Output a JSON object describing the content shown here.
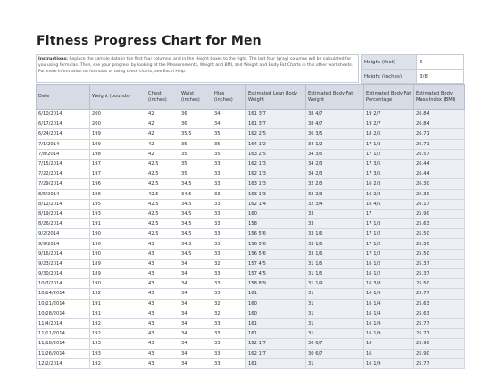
{
  "header": {
    "title": "Fitness Progress Chart for Men"
  },
  "instructions": {
    "label": "Instructions:",
    "text": "Replace the sample data in the first four columns, and in the Height boxes to the right. The last four (gray) columns will be calculated for you using formulas. Then, see your progress by looking at the Measurements, Weight and BMI, and Weight and Body Fat Charts in this other worksheets. For more information on formulas or using these charts, see Excel Help."
  },
  "height": {
    "feet_label": "Height (feet)",
    "feet": "6",
    "inches_label": "Height (inches)",
    "inches": "3/8"
  },
  "table": {
    "columns": [
      "Date",
      "Weight (pounds)",
      "Chest (inches)",
      "Waist (inches)",
      "Hips (inches)",
      "Estimated Lean Body Weight",
      "Estimated Body Fat Weight",
      "Estimated Body Fat Percentage",
      "Estimated Body Mass Index (BMI)"
    ],
    "rows": [
      [
        "6/10/2014",
        "200",
        "42",
        "36",
        "34",
        "161 3/7",
        "38 4/7",
        "19 2/7",
        "26.84"
      ],
      [
        "6/17/2014",
        "200",
        "42",
        "36",
        "34",
        "161 3/7",
        "38 4/7",
        "19 2/7",
        "26.84"
      ],
      [
        "6/24/2014",
        "199",
        "42",
        "35.5",
        "35",
        "162 2/5",
        "36 3/5",
        "18 2/5",
        "26.71"
      ],
      [
        "7/1/2014",
        "199",
        "42",
        "35",
        "35",
        "164 1/2",
        "34 1/2",
        "17 1/3",
        "26.71"
      ],
      [
        "7/8/2014",
        "198",
        "42",
        "35",
        "35",
        "163 2/5",
        "34 3/5",
        "17 1/2",
        "26.57"
      ],
      [
        "7/15/2014",
        "197",
        "42.5",
        "35",
        "33",
        "162 1/3",
        "34 2/3",
        "17 3/5",
        "26.44"
      ],
      [
        "7/22/2014",
        "197",
        "42.5",
        "35",
        "33",
        "162 1/3",
        "34 2/3",
        "17 3/5",
        "26.44"
      ],
      [
        "7/29/2014",
        "196",
        "42.5",
        "34.5",
        "33",
        "163 1/3",
        "32 2/3",
        "16 2/3",
        "26.30"
      ],
      [
        "8/5/2014",
        "196",
        "42.5",
        "34.5",
        "33",
        "163 1/3",
        "32 2/3",
        "16 2/3",
        "26.30"
      ],
      [
        "8/12/2014",
        "195",
        "42.5",
        "34.5",
        "33",
        "162 1/4",
        "32 3/4",
        "16 4/5",
        "26.17"
      ],
      [
        "8/19/2014",
        "193",
        "42.5",
        "34.5",
        "33",
        "160",
        "33",
        "17",
        "25.90"
      ],
      [
        "8/26/2014",
        "191",
        "42.5",
        "34.5",
        "33",
        "158",
        "33",
        "17 1/3",
        "25.63"
      ],
      [
        "9/2/2014",
        "190",
        "42.5",
        "34.5",
        "33",
        "156 5/6",
        "33 1/6",
        "17 1/2",
        "25.50"
      ],
      [
        "9/9/2014",
        "190",
        "43",
        "34.5",
        "33",
        "156 5/6",
        "33 1/6",
        "17 1/2",
        "25.50"
      ],
      [
        "9/16/2014",
        "190",
        "43",
        "34.5",
        "33",
        "156 5/6",
        "33 1/6",
        "17 1/2",
        "25.50"
      ],
      [
        "9/23/2014",
        "189",
        "43",
        "34",
        "32",
        "157 4/5",
        "31 1/5",
        "16 1/2",
        "25.37"
      ],
      [
        "9/30/2014",
        "189",
        "43",
        "34",
        "33",
        "157 4/5",
        "31 1/5",
        "16 1/2",
        "25.37"
      ],
      [
        "10/7/2014",
        "190",
        "43",
        "34",
        "33",
        "158 8/9",
        "31 1/9",
        "16 3/8",
        "25.50"
      ],
      [
        "10/14/2014",
        "192",
        "43",
        "34",
        "33",
        "161",
        "31",
        "16 1/9",
        "25.77"
      ],
      [
        "10/21/2014",
        "191",
        "43",
        "34",
        "32",
        "160",
        "31",
        "16 1/4",
        "25.63"
      ],
      [
        "10/28/2014",
        "191",
        "43",
        "34",
        "32",
        "160",
        "31",
        "16 1/4",
        "25.63"
      ],
      [
        "11/4/2014",
        "192",
        "43",
        "34",
        "33",
        "161",
        "31",
        "16 1/9",
        "25.77"
      ],
      [
        "11/11/2014",
        "192",
        "43",
        "34",
        "33",
        "161",
        "31",
        "16 1/9",
        "25.77"
      ],
      [
        "11/18/2014",
        "193",
        "43",
        "34",
        "33",
        "162 1/7",
        "30 6/7",
        "16",
        "25.90"
      ],
      [
        "11/26/2014",
        "193",
        "43",
        "34",
        "33",
        "162 1/7",
        "30 6/7",
        "16",
        "25.90"
      ],
      [
        "12/2/2014",
        "192",
        "43",
        "34",
        "33",
        "161",
        "31",
        "16 1/9",
        "25.77"
      ]
    ]
  }
}
